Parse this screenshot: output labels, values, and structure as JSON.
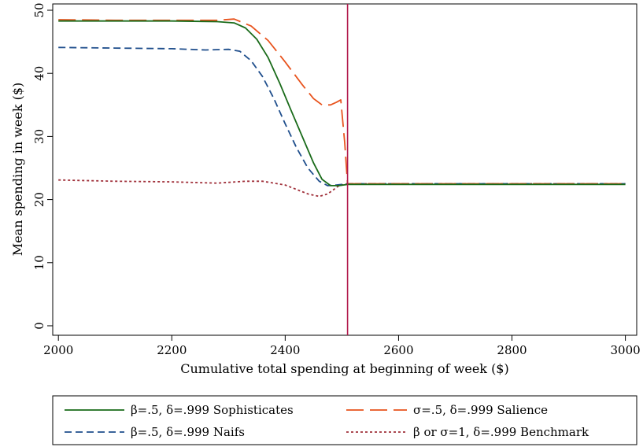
{
  "chart_data": {
    "type": "line",
    "title": "",
    "xlabel": "Cumulative total spending at beginning of week ($)",
    "ylabel": "Mean spending in week ($)",
    "xlim": [
      1990,
      3020
    ],
    "ylim": [
      -1.5,
      51
    ],
    "xticks": [
      2000,
      2200,
      2400,
      2600,
      2800,
      3000
    ],
    "yticks": [
      0,
      10,
      20,
      30,
      40,
      50
    ],
    "grid": false,
    "legend_position": "bottom",
    "vline": {
      "x": 2510,
      "color": "#b0174a"
    },
    "series": [
      {
        "name": "β=.5, δ=.999 Sophisticates",
        "color": "#1a6b1a",
        "dash": "solid",
        "x": [
          2000,
          2100,
          2200,
          2280,
          2310,
          2330,
          2350,
          2370,
          2390,
          2410,
          2430,
          2450,
          2465,
          2480,
          2495,
          2510,
          2600,
          2800,
          3000
        ],
        "y": [
          48.3,
          48.3,
          48.3,
          48.2,
          48.0,
          47.2,
          45.4,
          42.5,
          38.5,
          34.2,
          30.0,
          25.8,
          23.2,
          22.2,
          22.2,
          22.4,
          22.4,
          22.4,
          22.4
        ]
      },
      {
        "name": "σ=.5, δ=.999 Salience",
        "color": "#e8531d",
        "dash": "long",
        "x": [
          2000,
          2100,
          2200,
          2280,
          2310,
          2340,
          2370,
          2400,
          2430,
          2450,
          2465,
          2480,
          2490,
          2498,
          2505,
          2510,
          2600,
          2800,
          3000
        ],
        "y": [
          48.5,
          48.4,
          48.4,
          48.4,
          48.6,
          47.5,
          45.2,
          41.8,
          38.2,
          36.0,
          35.0,
          35.0,
          35.4,
          35.8,
          29.0,
          22.5,
          22.5,
          22.5,
          22.5
        ]
      },
      {
        "name": "β=.5, δ=.999 Naifs",
        "color": "#1f4e8c",
        "dash": "dashed",
        "x": [
          2000,
          2100,
          2200,
          2260,
          2300,
          2320,
          2340,
          2360,
          2380,
          2400,
          2420,
          2440,
          2460,
          2475,
          2490,
          2510,
          2600,
          2800,
          3000
        ],
        "y": [
          44.1,
          44.0,
          43.9,
          43.7,
          43.8,
          43.5,
          42.0,
          39.5,
          36.0,
          32.0,
          28.2,
          25.0,
          22.9,
          22.2,
          22.3,
          22.5,
          22.5,
          22.5,
          22.5
        ]
      },
      {
        "name": "β or σ=1, δ=.999 Benchmark",
        "color": "#a0303a",
        "dash": "dotted",
        "x": [
          2000,
          2100,
          2200,
          2280,
          2330,
          2360,
          2400,
          2440,
          2460,
          2475,
          2495,
          2510,
          2600,
          2800,
          3000
        ],
        "y": [
          23.1,
          22.9,
          22.8,
          22.6,
          22.9,
          22.9,
          22.3,
          20.9,
          20.5,
          20.9,
          22.2,
          22.5,
          22.5,
          22.5,
          22.5
        ]
      }
    ]
  }
}
